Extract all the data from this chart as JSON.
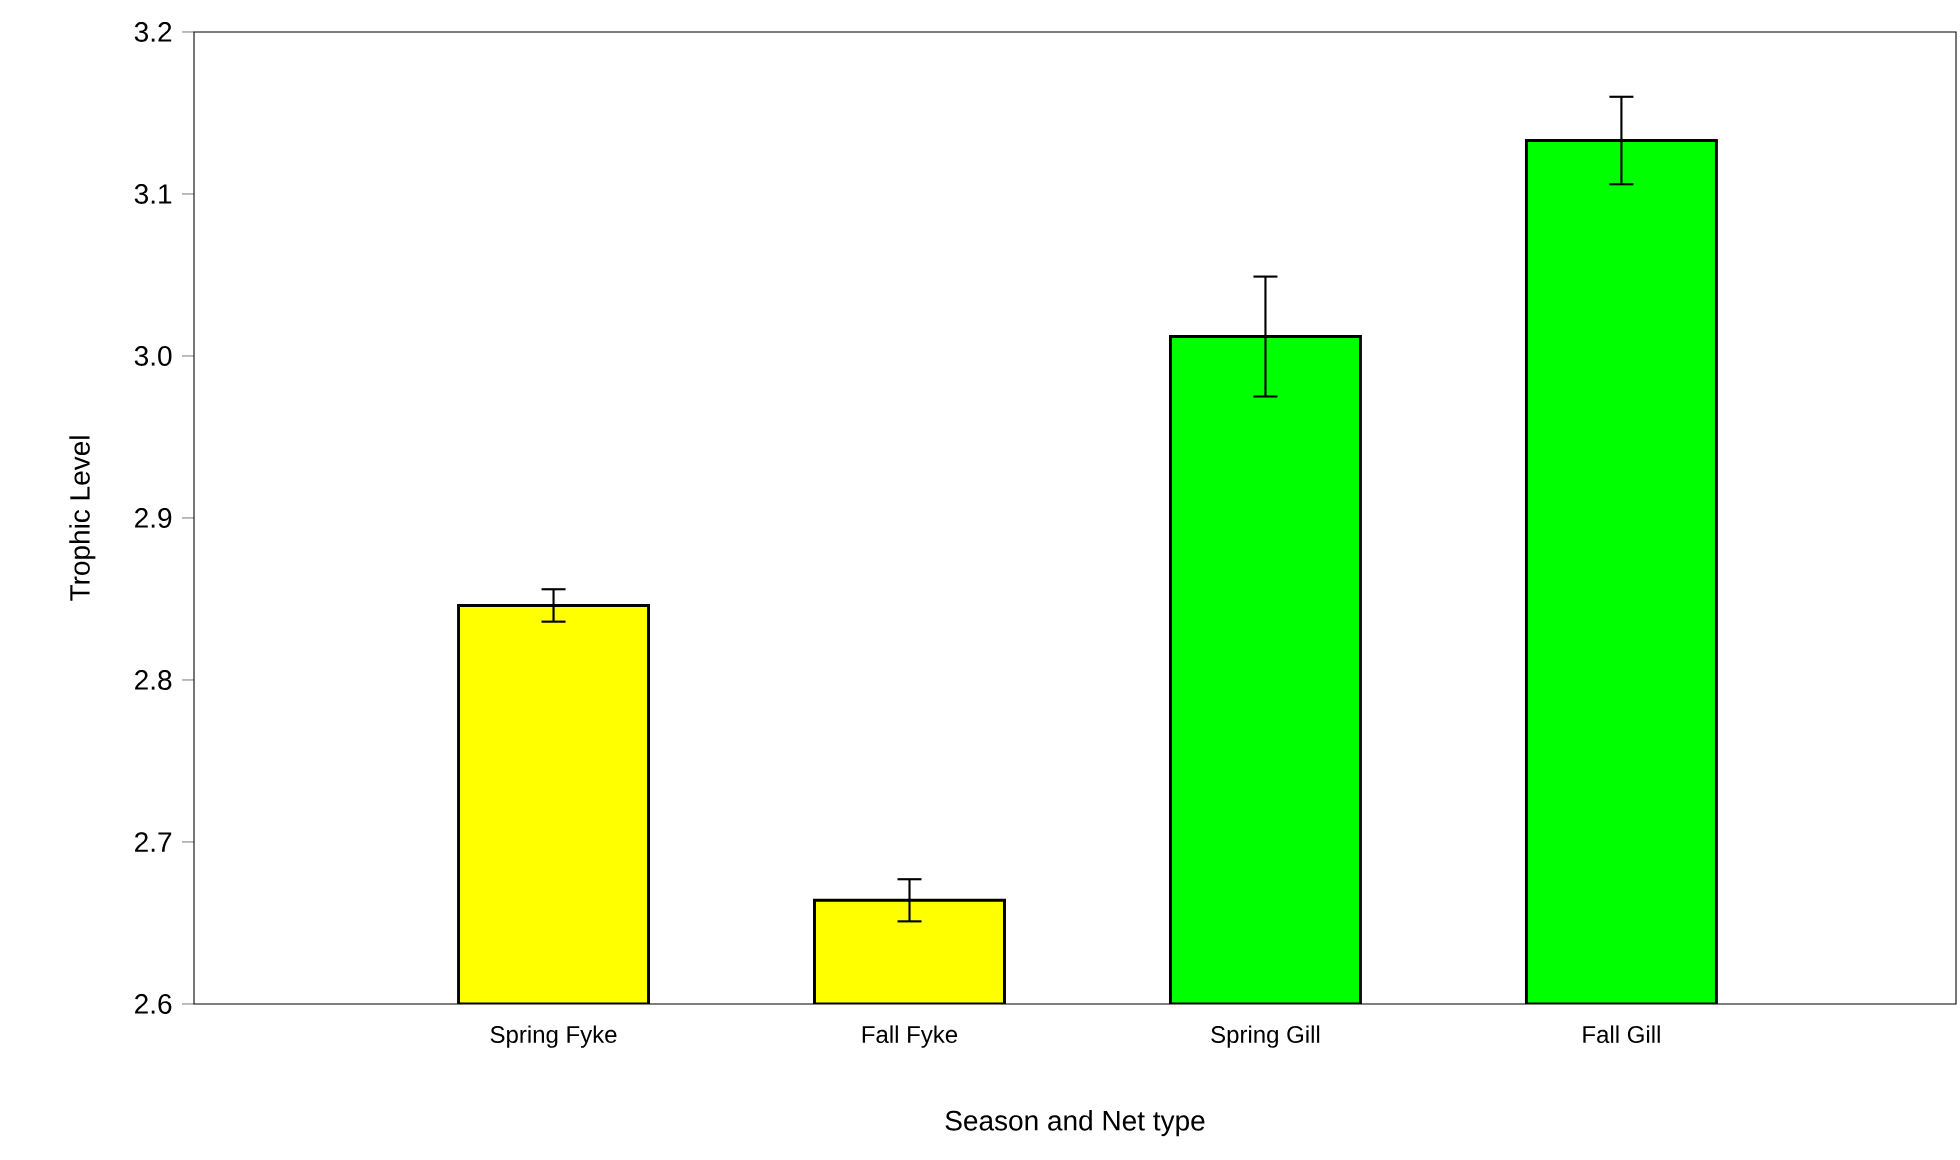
{
  "chart_data": {
    "type": "bar",
    "xlabel": "Season and Net type",
    "ylabel": "Trophic Level",
    "categories": [
      "Spring Fyke",
      "Fall Fyke",
      "Spring Gill",
      "Fall Gill"
    ],
    "values": [
      2.846,
      2.664,
      3.012,
      3.133
    ],
    "errors": [
      0.01,
      0.013,
      0.037,
      0.027
    ],
    "colors": [
      "#ffff00",
      "#ffff00",
      "#00ff00",
      "#00ff00"
    ],
    "ylim": [
      2.6,
      3.2
    ],
    "yticks": [
      {
        "value": 2.6,
        "label": "2.6"
      },
      {
        "value": 2.7,
        "label": "2.7"
      },
      {
        "value": 2.8,
        "label": "2.8"
      },
      {
        "value": 2.9,
        "label": "2.9"
      },
      {
        "value": 3.0,
        "label": "3.0"
      },
      {
        "value": 3.1,
        "label": "3.1"
      },
      {
        "value": 3.2,
        "label": "3.2"
      }
    ]
  }
}
